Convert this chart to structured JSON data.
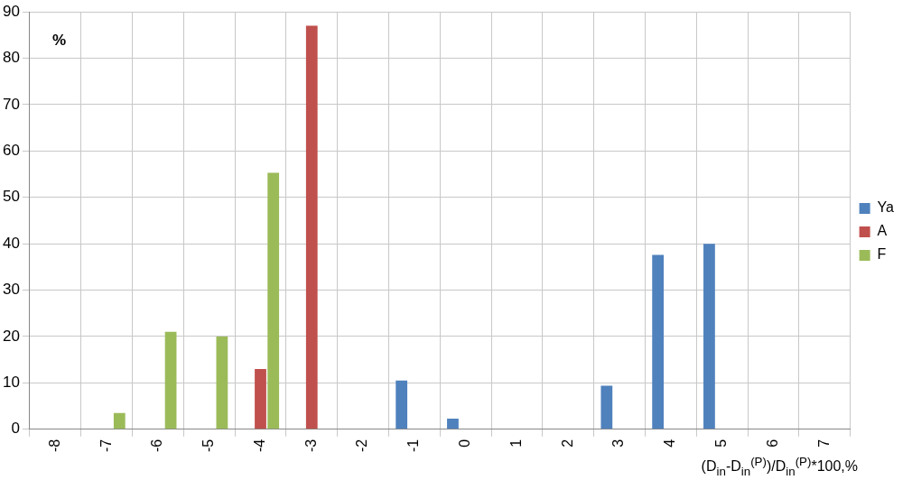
{
  "chart_data": {
    "type": "bar",
    "categories": [
      "-8",
      "-7",
      "-6",
      "-5",
      "-4",
      "-3",
      "-2",
      "-1",
      "0",
      "1",
      "2",
      "3",
      "4",
      "5",
      "6",
      "7"
    ],
    "series": [
      {
        "name": "Ya",
        "color": "#4f81bd",
        "values": [
          null,
          null,
          null,
          null,
          null,
          null,
          null,
          10.5,
          2.3,
          null,
          null,
          9.4,
          37.6,
          40,
          null,
          null
        ]
      },
      {
        "name": "A",
        "color": "#c0504d",
        "values": [
          null,
          null,
          null,
          null,
          13,
          87,
          null,
          null,
          null,
          null,
          null,
          null,
          null,
          null,
          null,
          null
        ]
      },
      {
        "name": "F",
        "color": "#9bbb59",
        "values": [
          null,
          3.5,
          21,
          20,
          55.3,
          null,
          null,
          null,
          null,
          null,
          null,
          null,
          null,
          null,
          null,
          null
        ]
      }
    ],
    "ylabel": "%",
    "xlabel": "(D$_{in}$-D$_{in}$$^{(P)}$)/D$_{in}$$^{(P)}$*100,%",
    "ylim": [
      0,
      90
    ],
    "yticks": [
      0,
      10,
      20,
      30,
      40,
      50,
      60,
      70,
      80,
      90
    ],
    "grid": true,
    "legend": "right"
  }
}
